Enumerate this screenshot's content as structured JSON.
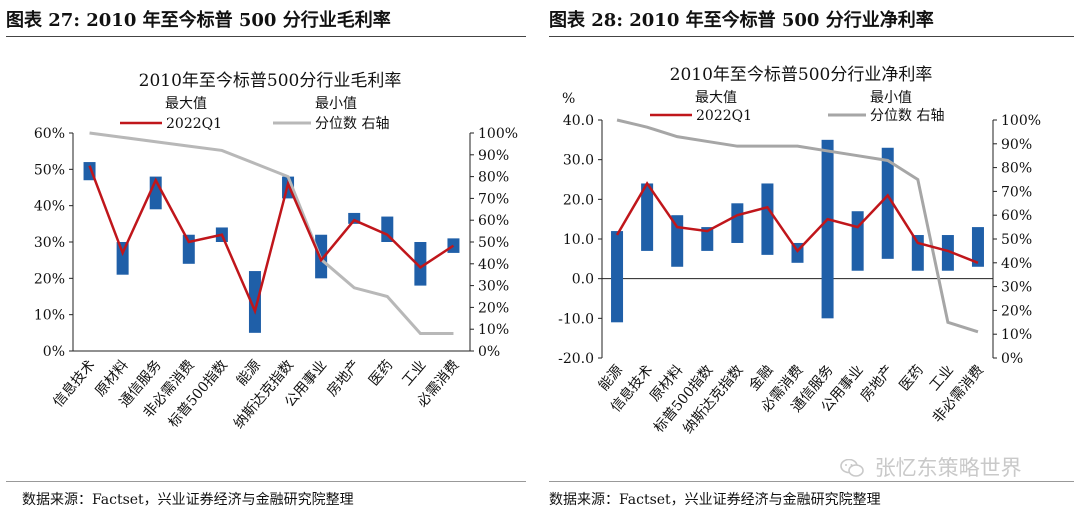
{
  "figures": [
    {
      "label": "图表 27:",
      "title": "2010 年至今标普 500 分行业毛利率",
      "source": "数据来源：Factset，兴业证券经济与金融研究院整理"
    },
    {
      "label": "图表 28:",
      "title": "2010 年至今标普 500 分行业净利率",
      "source": "数据来源：Factset，兴业证券经济与金融研究院整理"
    }
  ],
  "watermark": {
    "text": "张忆东策略世界",
    "icon": "wechat-icon"
  },
  "chart_data": [
    {
      "type": "bar",
      "title": "2010年至今标普500分行业毛利率",
      "legend": {
        "max": "最大值",
        "min": "最小值",
        "line": "2022Q1",
        "pct": "分位数 右轴"
      },
      "left_unit": "",
      "categories": [
        "信息技术",
        "原材料",
        "通信服务",
        "非必需消费",
        "标普500指数",
        "能源",
        "纳斯达克指数",
        "公用事业",
        "房地产",
        "医药",
        "工业",
        "必需消费"
      ],
      "max": [
        52,
        30,
        48,
        32,
        34,
        22,
        48,
        32,
        38,
        37,
        30,
        31
      ],
      "min": [
        47,
        21,
        39,
        24,
        30,
        5,
        42,
        20,
        35,
        30,
        18,
        27
      ],
      "current": [
        51,
        27,
        47,
        30,
        32,
        11,
        46,
        25,
        36,
        32,
        23,
        29
      ],
      "percentile": [
        100,
        98,
        96,
        94,
        92,
        86,
        80,
        42,
        29,
        25,
        8,
        8
      ],
      "y_left": {
        "min": 0,
        "max": 60,
        "step": 10,
        "ticks": [
          "0%",
          "10%",
          "20%",
          "30%",
          "40%",
          "50%",
          "60%"
        ]
      },
      "y_right": {
        "min": 0,
        "max": 100,
        "step": 10,
        "ticks": [
          "0%",
          "10%",
          "20%",
          "30%",
          "40%",
          "50%",
          "60%",
          "70%",
          "80%",
          "90%",
          "100%"
        ]
      },
      "colors": {
        "bar": "#1f5fa8",
        "line": "#c0161b",
        "pct": "#b8b8b8"
      }
    },
    {
      "type": "bar",
      "title": "2010年至今标普500分行业净利率",
      "legend": {
        "max": "最大值",
        "min": "最小值",
        "line": "2022Q1",
        "pct": "分位数 右轴"
      },
      "left_unit": "%",
      "categories": [
        "能源",
        "信息技术",
        "原材料",
        "标普500指数",
        "纳斯达克指数",
        "金融",
        "必需消费",
        "通信服务",
        "公用事业",
        "房地产",
        "医药",
        "工业",
        "非必需消费"
      ],
      "max": [
        12,
        24,
        16,
        13,
        19,
        24,
        9,
        35,
        17,
        33,
        11,
        11,
        13
      ],
      "min": [
        -11,
        7,
        3,
        7,
        9,
        6,
        4,
        -10,
        2,
        5,
        2,
        2,
        3
      ],
      "current": [
        11,
        24,
        13,
        12,
        16,
        18,
        7,
        15,
        13,
        21,
        9,
        7,
        4
      ],
      "percentile": [
        100,
        97,
        93,
        91,
        89,
        89,
        89,
        87,
        85,
        83,
        75,
        15,
        11
      ],
      "y_left": {
        "min": -20,
        "max": 40,
        "step": 10,
        "ticks": [
          "-20.0",
          "-10.0",
          "0.0",
          "10.0",
          "20.0",
          "30.0",
          "40.0"
        ]
      },
      "y_right": {
        "min": 0,
        "max": 100,
        "step": 10,
        "ticks": [
          "0%",
          "10%",
          "20%",
          "30%",
          "40%",
          "50%",
          "60%",
          "70%",
          "80%",
          "90%",
          "100%"
        ]
      },
      "colors": {
        "bar": "#1f5fa8",
        "line": "#c0161b",
        "pct": "#a6a6a6"
      }
    }
  ]
}
